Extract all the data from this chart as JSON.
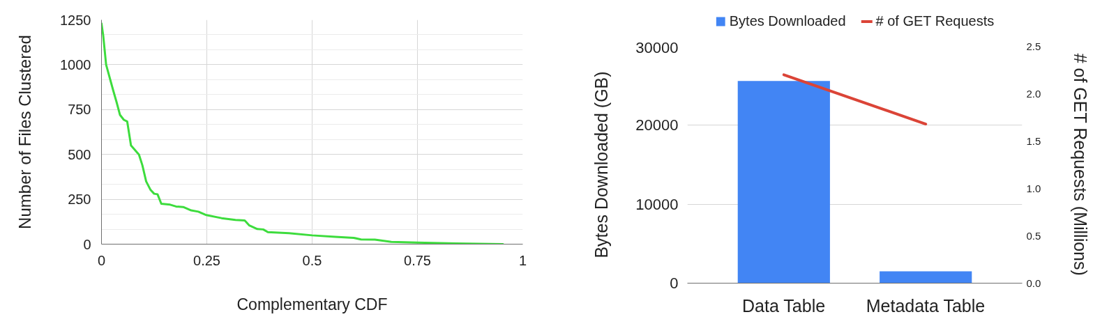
{
  "chart_data": [
    {
      "type": "line",
      "xlabel": "Complementary CDF",
      "ylabel": "Number of Files Clustered",
      "x": [
        0,
        0.004,
        0.011,
        0.028,
        0.036,
        0.044,
        0.053,
        0.061,
        0.07,
        0.089,
        0.097,
        0.106,
        0.116,
        0.125,
        0.133,
        0.142,
        0.163,
        0.177,
        0.194,
        0.213,
        0.23,
        0.249,
        0.285,
        0.318,
        0.34,
        0.351,
        0.37,
        0.384,
        0.395,
        0.445,
        0.5,
        0.555,
        0.599,
        0.616,
        0.649,
        0.688,
        0.75,
        0.842,
        0.953
      ],
      "values": [
        1230,
        1165,
        1000,
        855,
        790,
        720,
        693,
        684,
        550,
        499,
        440,
        350,
        304,
        281,
        278,
        225,
        220,
        210,
        207,
        188,
        181,
        162,
        145,
        135,
        132,
        104,
        84,
        82,
        67,
        61,
        49,
        41,
        35,
        26,
        25,
        13,
        9,
        4,
        0
      ],
      "color": "#3ddc3d",
      "xlim": [
        0,
        1
      ],
      "ylim": [
        0,
        1250
      ],
      "xticks": [
        0,
        0.25,
        0.5,
        0.75,
        1
      ],
      "yticks": [
        0,
        250,
        500,
        750,
        1000,
        1250
      ],
      "grid": true
    },
    {
      "type": "bar",
      "categories": [
        "Data Table",
        "Metadata Table"
      ],
      "series": [
        {
          "name": "Bytes Downloaded",
          "color": "#4285f4",
          "values": [
            25600,
            1500
          ]
        },
        {
          "name": "# of GET Requests",
          "type": "line",
          "axis": "y2",
          "color": "#db4437",
          "values": [
            2.2,
            1.68
          ]
        }
      ],
      "ylabel": "Bytes Downloaded (GB)",
      "y2label": "# of GET Requests (Millions)",
      "ylim": [
        0,
        30000
      ],
      "yticks": [
        0,
        10000,
        20000,
        30000
      ],
      "y2lim": [
        0,
        2.5
      ],
      "y2ticks": [
        {
          "value": 0,
          "label": "0.0"
        },
        0.5,
        {
          "value": 1,
          "label": "1.0"
        },
        1.5,
        {
          "value": 2,
          "label": "2.0"
        },
        2.5
      ],
      "grid": "y",
      "legend": "top"
    }
  ]
}
